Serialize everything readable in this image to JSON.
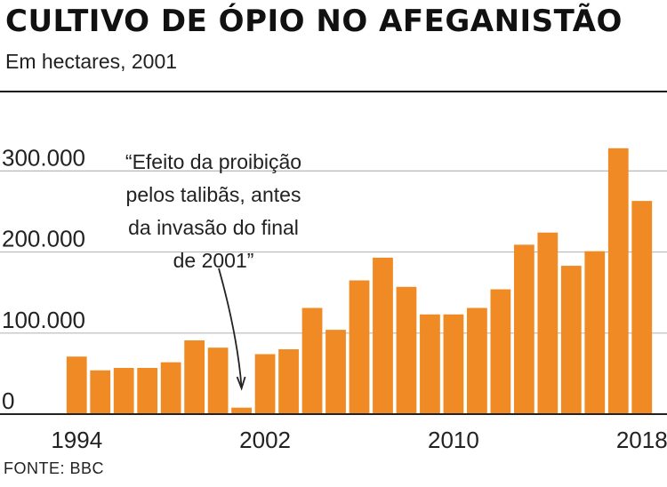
{
  "header": {
    "title": "CULTIVO DE ÓPIO NO AFEGANISTÃO",
    "subtitle": "Em hectares, 2001"
  },
  "footer": {
    "source": "FONTE: BBC"
  },
  "colors": {
    "bar": "#f08a24",
    "grid": "#b8b8b8",
    "axis": "#222222",
    "text": "#222222"
  },
  "chart_data": {
    "type": "bar",
    "title": "CULTIVO DE ÓPIO NO AFEGANISTÃO",
    "subtitle": "Em hectares, 2001",
    "xlabel": "",
    "ylabel": "",
    "categories": [
      1994,
      1995,
      1996,
      1997,
      1998,
      1999,
      2000,
      2001,
      2002,
      2003,
      2004,
      2005,
      2006,
      2007,
      2008,
      2009,
      2010,
      2011,
      2012,
      2013,
      2014,
      2015,
      2016,
      2017,
      2018
    ],
    "values": [
      71000,
      54000,
      57000,
      57000,
      64000,
      91000,
      82000,
      8000,
      74000,
      80000,
      131000,
      104000,
      165000,
      193000,
      157000,
      123000,
      123000,
      131000,
      154000,
      209000,
      224000,
      183000,
      201000,
      328000,
      263000
    ],
    "ylim": [
      0,
      330000
    ],
    "yticks": [
      {
        "value": 0,
        "label": "0"
      },
      {
        "value": 100000,
        "label": "100.000"
      },
      {
        "value": 200000,
        "label": "200.000"
      },
      {
        "value": 300000,
        "label": "300.000"
      }
    ],
    "xticks": [
      {
        "value": 1994,
        "label": "1994"
      },
      {
        "value": 2002,
        "label": "2002"
      },
      {
        "value": 2010,
        "label": "2010"
      },
      {
        "value": 2018,
        "label": "2018"
      }
    ],
    "grid": true,
    "annotation": {
      "target": 2001,
      "lines": [
        "“Efeito da proibição",
        "pelos talibãs, antes",
        "da invasão do final",
        "de 2001”"
      ]
    }
  }
}
